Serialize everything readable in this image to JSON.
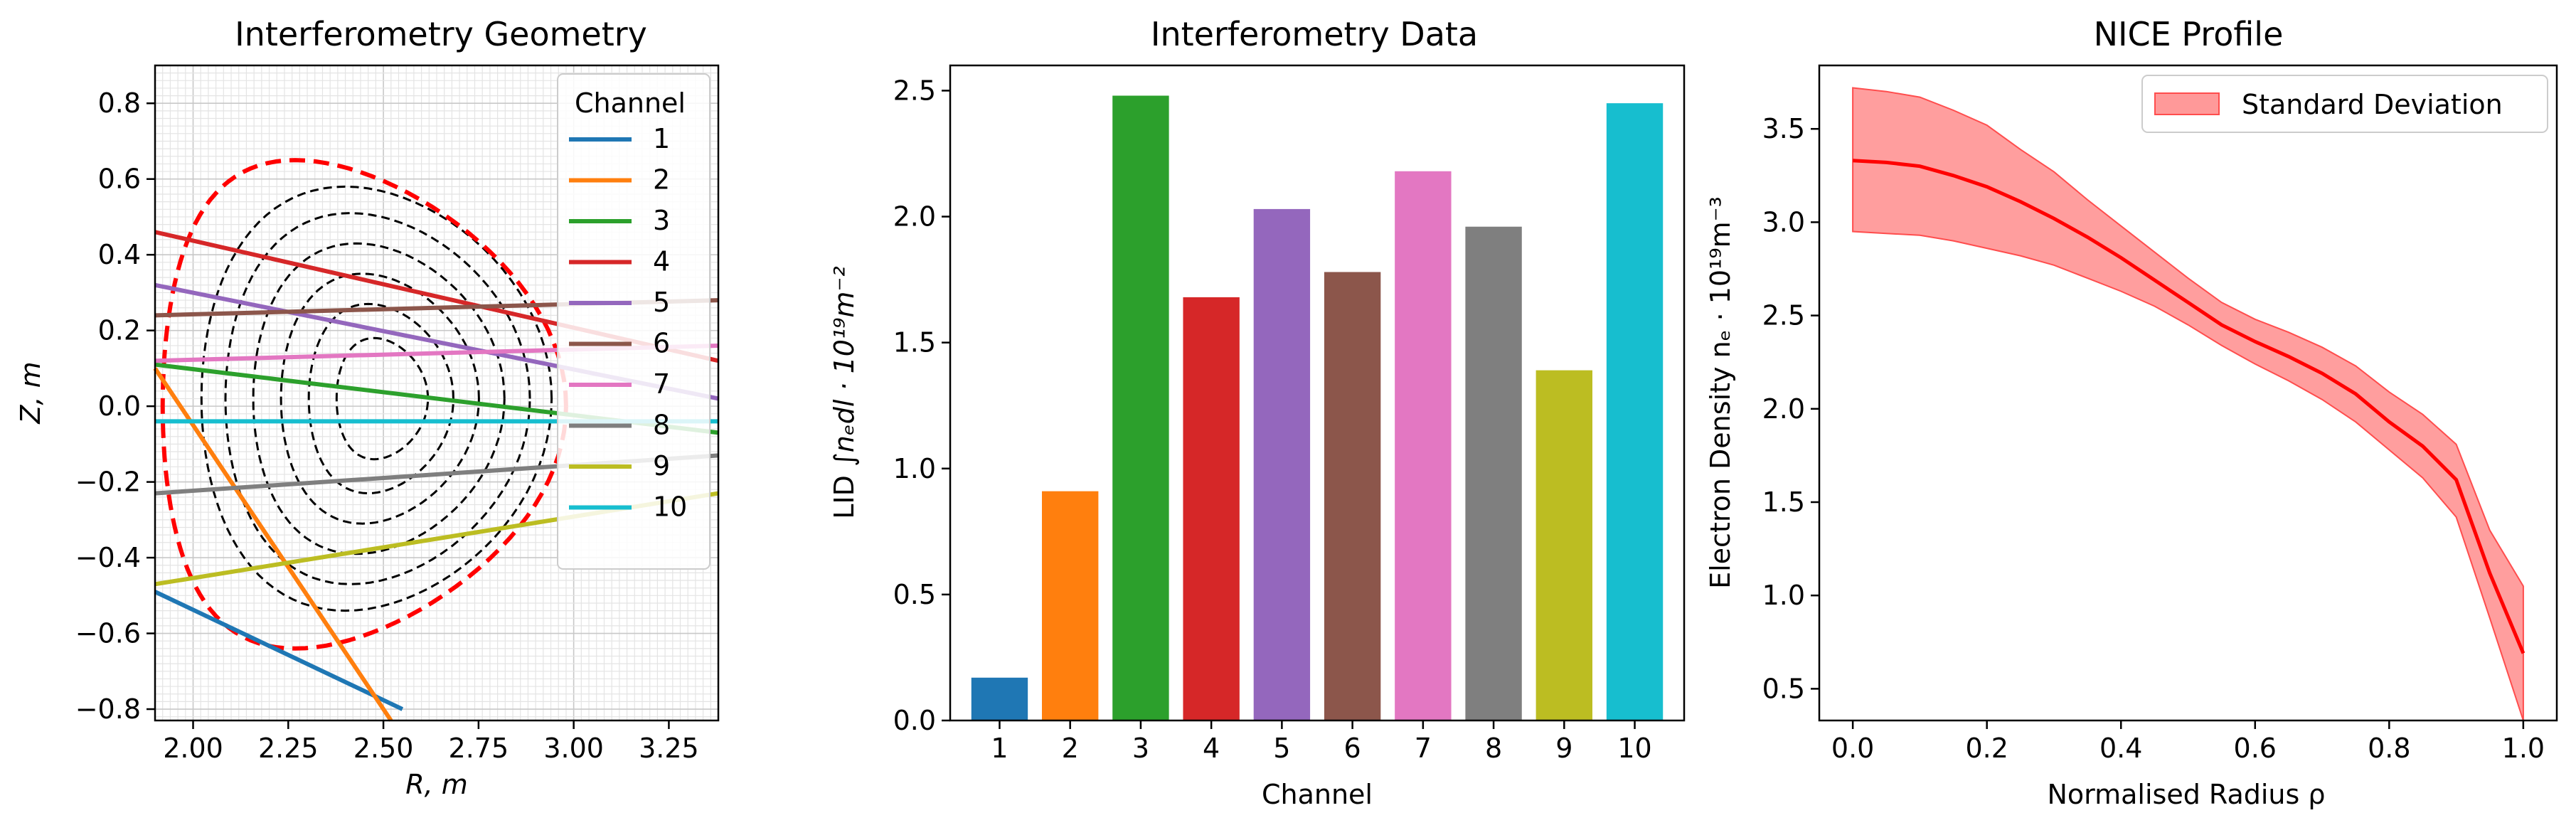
{
  "chart_data": [
    {
      "type": "line",
      "title": "Interferometry Geometry",
      "xlabel": "R, m",
      "ylabel": "Z, m",
      "xlim": [
        1.9,
        3.38
      ],
      "ylim": [
        -0.83,
        0.9
      ],
      "x_ticks": [
        "2.00",
        "2.25",
        "2.50",
        "2.75",
        "3.00",
        "3.25"
      ],
      "y_ticks": [
        "−0.8",
        "−0.6",
        "−0.4",
        "−0.2",
        "0.0",
        "0.2",
        "0.4",
        "0.6",
        "0.8"
      ],
      "grid": true,
      "legend": {
        "title": "Channel",
        "placement": "top-right"
      },
      "boundary": {
        "color": "#ff0000",
        "style": "dashed",
        "center_r": 2.45,
        "r_inner": 1.92,
        "r_outer": 2.98,
        "z_top": 0.65,
        "z_bottom": -0.64
      },
      "flux_surfaces": {
        "color": "#000000",
        "style": "dashed",
        "center_r": 2.5,
        "center_z": 0.02,
        "half_widths_r": [
          0.12,
          0.19,
          0.26,
          0.33,
          0.4,
          0.46
        ],
        "half_heights_z": [
          0.16,
          0.25,
          0.33,
          0.41,
          0.49,
          0.56
        ]
      },
      "series": [
        {
          "name": "1",
          "color": "#1f77b4",
          "x": [
            1.9,
            2.55
          ],
          "y": [
            -0.49,
            -0.8
          ]
        },
        {
          "name": "2",
          "color": "#ff7f0e",
          "x": [
            1.9,
            2.52
          ],
          "y": [
            0.1,
            -0.83
          ]
        },
        {
          "name": "3",
          "color": "#2ca02c",
          "x": [
            1.9,
            3.38
          ],
          "y": [
            0.11,
            -0.07
          ]
        },
        {
          "name": "4",
          "color": "#d62728",
          "x": [
            1.9,
            3.38
          ],
          "y": [
            0.46,
            0.12
          ]
        },
        {
          "name": "5",
          "color": "#9467bd",
          "x": [
            1.9,
            3.38
          ],
          "y": [
            0.32,
            0.02
          ]
        },
        {
          "name": "6",
          "color": "#8c564b",
          "x": [
            1.9,
            3.38
          ],
          "y": [
            0.24,
            0.28
          ]
        },
        {
          "name": "7",
          "color": "#e377c2",
          "x": [
            1.9,
            3.38
          ],
          "y": [
            0.12,
            0.16
          ]
        },
        {
          "name": "8",
          "color": "#7f7f7f",
          "x": [
            1.9,
            3.38
          ],
          "y": [
            -0.23,
            -0.13
          ]
        },
        {
          "name": "9",
          "color": "#bcbd22",
          "x": [
            1.9,
            3.38
          ],
          "y": [
            -0.47,
            -0.23
          ]
        },
        {
          "name": "10",
          "color": "#17becf",
          "x": [
            1.9,
            3.38
          ],
          "y": [
            -0.04,
            -0.04
          ]
        }
      ]
    },
    {
      "type": "bar",
      "title": "Interferometry Data",
      "xlabel": "Channel",
      "ylabel_prefix": "LID ",
      "ylabel_math": "∫nₑdl · 10¹⁹m⁻²",
      "ylim": [
        0,
        2.6
      ],
      "y_ticks": [
        "0.0",
        "0.5",
        "1.0",
        "1.5",
        "2.0",
        "2.5"
      ],
      "categories": [
        "1",
        "2",
        "3",
        "4",
        "5",
        "6",
        "7",
        "8",
        "9",
        "10"
      ],
      "values": [
        0.17,
        0.91,
        2.48,
        1.68,
        2.03,
        1.78,
        2.18,
        1.96,
        1.39,
        2.45
      ],
      "colors": [
        "#1f77b4",
        "#ff7f0e",
        "#2ca02c",
        "#d62728",
        "#9467bd",
        "#8c564b",
        "#e377c2",
        "#7f7f7f",
        "#bcbd22",
        "#17becf"
      ]
    },
    {
      "type": "line",
      "title": "NICE Profile",
      "xlabel": "Normalised Radius ρ",
      "ylabel": "Electron Density nₑ · 10¹⁹m⁻³",
      "xlim": [
        -0.05,
        1.05
      ],
      "ylim": [
        0.33,
        3.84
      ],
      "x_ticks": [
        "0.0",
        "0.2",
        "0.4",
        "0.6",
        "0.8",
        "1.0"
      ],
      "y_ticks": [
        "0.5",
        "1.0",
        "1.5",
        "2.0",
        "2.5",
        "3.0",
        "3.5"
      ],
      "legend": {
        "entries": [
          "Standard Deviation"
        ],
        "placement": "top-right"
      },
      "line_color": "#ff0000",
      "band_color": "#ff9999",
      "x": [
        0.0,
        0.05,
        0.1,
        0.15,
        0.2,
        0.25,
        0.3,
        0.35,
        0.4,
        0.45,
        0.5,
        0.55,
        0.6,
        0.65,
        0.7,
        0.75,
        0.8,
        0.85,
        0.9,
        0.95,
        1.0
      ],
      "mean": [
        3.33,
        3.32,
        3.3,
        3.25,
        3.19,
        3.11,
        3.02,
        2.92,
        2.81,
        2.69,
        2.57,
        2.45,
        2.36,
        2.28,
        2.19,
        2.08,
        1.93,
        1.8,
        1.62,
        1.12,
        0.69
      ],
      "upper": [
        3.72,
        3.7,
        3.67,
        3.6,
        3.52,
        3.39,
        3.27,
        3.12,
        2.98,
        2.84,
        2.7,
        2.57,
        2.48,
        2.41,
        2.33,
        2.23,
        2.09,
        1.97,
        1.81,
        1.35,
        1.05
      ],
      "lower": [
        2.95,
        2.94,
        2.93,
        2.9,
        2.86,
        2.82,
        2.77,
        2.7,
        2.63,
        2.55,
        2.45,
        2.34,
        2.24,
        2.15,
        2.05,
        1.93,
        1.78,
        1.63,
        1.42,
        0.88,
        0.33
      ]
    }
  ]
}
